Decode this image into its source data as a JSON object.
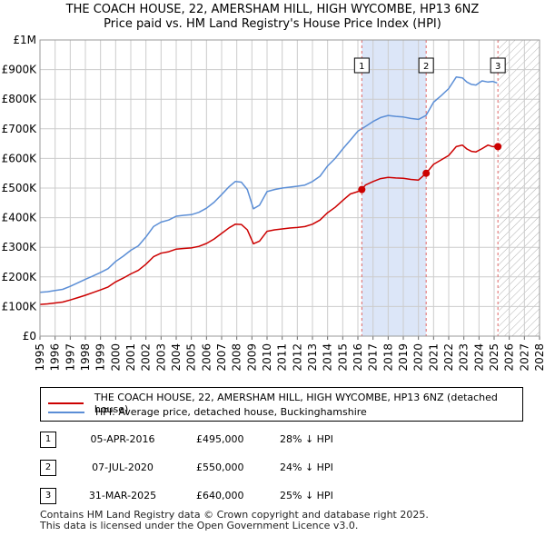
{
  "title_line1": "THE COACH HOUSE, 22, AMERSHAM HILL, HIGH WYCOMBE, HP13 6NZ",
  "title_line2": "Price paid vs. HM Land Registry's House Price Index (HPI)",
  "colors": {
    "property": "#cc0000",
    "hpi": "#5b8ed6",
    "shade": "#dce6f8",
    "marker_line": "#e06666"
  },
  "chart_data": {
    "type": "line",
    "title": "THE COACH HOUSE, 22, AMERSHAM HILL, HIGH WYCOMBE, HP13 6NZ — Price paid vs. HM Land Registry's House Price Index (HPI)",
    "xlim": [
      1995,
      2028
    ],
    "ylim": [
      0,
      1000000
    ],
    "y_ticks": [
      {
        "value": 0,
        "label": "£0"
      },
      {
        "value": 100000,
        "label": "£100K"
      },
      {
        "value": 200000,
        "label": "£200K"
      },
      {
        "value": 300000,
        "label": "£300K"
      },
      {
        "value": 400000,
        "label": "£400K"
      },
      {
        "value": 500000,
        "label": "£500K"
      },
      {
        "value": 600000,
        "label": "£600K"
      },
      {
        "value": 700000,
        "label": "£700K"
      },
      {
        "value": 800000,
        "label": "£800K"
      },
      {
        "value": 900000,
        "label": "£900K"
      },
      {
        "value": 1000000,
        "label": "£1M"
      }
    ],
    "x_ticks": [
      "1995",
      "1996",
      "1997",
      "1998",
      "1999",
      "2000",
      "2001",
      "2002",
      "2003",
      "2004",
      "2005",
      "2006",
      "2007",
      "2008",
      "2009",
      "2010",
      "2011",
      "2012",
      "2013",
      "2014",
      "2015",
      "2016",
      "2017",
      "2018",
      "2019",
      "2020",
      "2021",
      "2022",
      "2023",
      "2024",
      "2025",
      "2026",
      "2027",
      "2028"
    ],
    "shaded_ranges": [
      {
        "from": 2016.26,
        "to": 2020.51
      }
    ],
    "future_hatch_from": 2025.3,
    "series": [
      {
        "name": "HPI: Average price, detached house, Buckinghamshire",
        "color": "#5b8ed6",
        "x": [
          1995.0,
          1995.5,
          1996.0,
          1996.5,
          1997.0,
          1997.5,
          1998.0,
          1998.5,
          1999.0,
          1999.5,
          2000.0,
          2000.5,
          2001.0,
          2001.5,
          2002.0,
          2002.5,
          2003.0,
          2003.5,
          2004.0,
          2004.5,
          2005.0,
          2005.5,
          2006.0,
          2006.5,
          2007.0,
          2007.5,
          2007.9,
          2008.3,
          2008.7,
          2009.1,
          2009.5,
          2010.0,
          2010.5,
          2011.0,
          2011.5,
          2012.0,
          2012.5,
          2013.0,
          2013.5,
          2014.0,
          2014.5,
          2015.0,
          2015.5,
          2016.0,
          2016.5,
          2017.0,
          2017.5,
          2018.0,
          2018.5,
          2019.0,
          2019.5,
          2020.0,
          2020.5,
          2021.0,
          2021.5,
          2022.0,
          2022.5,
          2022.9,
          2023.2,
          2023.5,
          2023.8,
          2024.2,
          2024.6,
          2024.9,
          2025.2
        ],
        "values": [
          148000,
          150000,
          154000,
          158000,
          168000,
          180000,
          192000,
          203000,
          215000,
          228000,
          252000,
          270000,
          290000,
          305000,
          335000,
          370000,
          385000,
          392000,
          405000,
          408000,
          410000,
          418000,
          432000,
          452000,
          478000,
          505000,
          522000,
          520000,
          495000,
          430000,
          442000,
          488000,
          495000,
          500000,
          503000,
          506000,
          510000,
          522000,
          540000,
          575000,
          600000,
          632000,
          662000,
          692000,
          708000,
          725000,
          738000,
          745000,
          742000,
          740000,
          735000,
          732000,
          745000,
          790000,
          812000,
          836000,
          875000,
          872000,
          858000,
          850000,
          848000,
          862000,
          858000,
          860000,
          855000
        ]
      },
      {
        "name": "THE COACH HOUSE, 22, AMERSHAM HILL, HIGH WYCOMBE, HP13 6NZ (detached house)",
        "color": "#cc0000",
        "x": [
          1995.0,
          1995.5,
          1996.0,
          1996.5,
          1997.0,
          1997.5,
          1998.0,
          1998.5,
          1999.0,
          1999.5,
          2000.0,
          2000.5,
          2001.0,
          2001.5,
          2002.0,
          2002.5,
          2003.0,
          2003.5,
          2004.0,
          2004.5,
          2005.0,
          2005.5,
          2006.0,
          2006.5,
          2007.0,
          2007.5,
          2007.9,
          2008.3,
          2008.7,
          2009.1,
          2009.5,
          2010.0,
          2010.5,
          2011.0,
          2011.5,
          2012.0,
          2012.5,
          2013.0,
          2013.5,
          2014.0,
          2014.5,
          2015.0,
          2015.5,
          2016.0,
          2016.26,
          2016.5,
          2017.0,
          2017.5,
          2018.0,
          2018.5,
          2019.0,
          2019.5,
          2020.0,
          2020.51,
          2021.0,
          2021.5,
          2022.0,
          2022.5,
          2022.9,
          2023.2,
          2023.5,
          2023.8,
          2024.2,
          2024.6,
          2024.9,
          2025.25
        ],
        "values": [
          107000,
          109000,
          112000,
          115000,
          122000,
          130000,
          138000,
          147000,
          156000,
          166000,
          183000,
          196000,
          210000,
          222000,
          243000,
          268000,
          280000,
          285000,
          294000,
          296000,
          298000,
          303000,
          313000,
          328000,
          347000,
          366000,
          378000,
          377000,
          359000,
          312000,
          321000,
          354000,
          359000,
          362000,
          365000,
          367000,
          370000,
          378000,
          392000,
          417000,
          435000,
          458000,
          480000,
          488000,
          495000,
          510000,
          522000,
          532000,
          536000,
          534000,
          533000,
          529000,
          527000,
          550000,
          580000,
          595000,
          610000,
          640000,
          645000,
          632000,
          624000,
          622000,
          633000,
          645000,
          640000,
          640000
        ]
      }
    ],
    "sales": [
      {
        "n": "1",
        "x": 2016.26,
        "value": 495000
      },
      {
        "n": "2",
        "x": 2020.51,
        "value": 550000
      },
      {
        "n": "3",
        "x": 2025.25,
        "value": 640000
      }
    ]
  },
  "legend": {
    "property": "THE COACH HOUSE, 22, AMERSHAM HILL, HIGH WYCOMBE, HP13 6NZ (detached house)",
    "hpi": "HPI: Average price, detached house, Buckinghamshire"
  },
  "sales_table": [
    {
      "n": "1",
      "date": "05-APR-2016",
      "price": "£495,000",
      "hpi": "28% ↓ HPI"
    },
    {
      "n": "2",
      "date": "07-JUL-2020",
      "price": "£550,000",
      "hpi": "24% ↓ HPI"
    },
    {
      "n": "3",
      "date": "31-MAR-2025",
      "price": "£640,000",
      "hpi": "25% ↓ HPI"
    }
  ],
  "footer": {
    "line1": "Contains HM Land Registry data © Crown copyright and database right 2025.",
    "line2": "This data is licensed under the Open Government Licence v3.0."
  }
}
